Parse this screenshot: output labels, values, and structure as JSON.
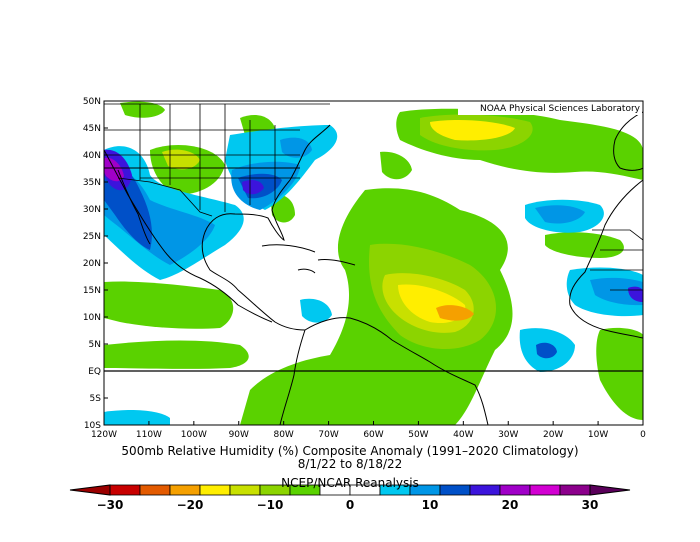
{
  "map": {
    "credit": "NOAA Physical Sciences Laboratory",
    "lat_ticks": [
      "50N",
      "45N",
      "40N",
      "35N",
      "30N",
      "25N",
      "20N",
      "15N",
      "10N",
      "5N",
      "EQ",
      "5S",
      "10S"
    ],
    "lon_ticks": [
      "120W",
      "110W",
      "100W",
      "90W",
      "80W",
      "70W",
      "60W",
      "50W",
      "40W",
      "30W",
      "20W",
      "10W",
      "0"
    ],
    "lon_range": [
      -120,
      0
    ],
    "lat_range": [
      -10,
      50
    ]
  },
  "caption": {
    "title": "500mb Relative Humidity (%) Composite Anomaly (1991–2020 Climatology)",
    "dates": "8/1/22  to 8/18/22",
    "source": "NCEP/NCAR Reanalysis"
  },
  "colorbar": {
    "labels": [
      "−30",
      "−20",
      "−10",
      "0",
      "10",
      "20",
      "30"
    ],
    "colors": [
      "#c80000",
      "#e35a00",
      "#f5a000",
      "#ffee00",
      "#c8e000",
      "#8cd400",
      "#5ad200",
      "#ffffff",
      "#ffffff",
      "#00c8f0",
      "#0096e6",
      "#0050c8",
      "#3c14dc",
      "#a000c8",
      "#d200d2",
      "#8c008c"
    ]
  },
  "palette": {
    "neg_light": "#5ad200",
    "neg_mid": "#8cd400",
    "neg_strong": "#c8e000",
    "neg_yellow": "#ffee00",
    "neg_orange": "#f5a000",
    "pos_light": "#00c8f0",
    "pos_mid": "#0096e6",
    "pos_strong": "#0050c8",
    "pos_violet": "#3c14dc",
    "pos_magenta": "#a000c8"
  }
}
